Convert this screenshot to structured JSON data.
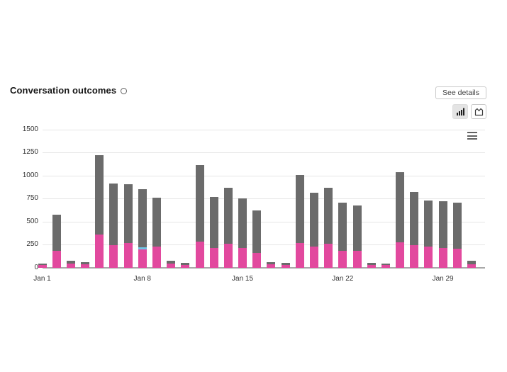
{
  "header": {
    "title": "Conversation outcomes",
    "see_details_label": "See details"
  },
  "toolbar": {
    "icons": [
      "bar-chart-icon",
      "area-chart-icon",
      "hamburger-menu-icon",
      "info-circle-icon"
    ],
    "selected_view": "bar"
  },
  "colors": {
    "pink": "#e2499e",
    "blue": "#6fc5e4",
    "gray": "#6b6b6b",
    "gridline": "#e6e6e6",
    "axis": "#a9a9a9",
    "label": "#333333"
  },
  "chart_data": {
    "type": "bar",
    "stacked": true,
    "title": "Conversation outcomes",
    "xlabel": "",
    "ylabel": "",
    "ylim": [
      0,
      1500
    ],
    "y_ticks": [
      0,
      250,
      500,
      750,
      1000,
      1250,
      1500
    ],
    "x_tick_labels": [
      "Jan 1",
      "Jan 8",
      "Jan 15",
      "Jan 22",
      "Jan 29"
    ],
    "grid": true,
    "legend": "none",
    "categories": [
      "Jan 1",
      "Jan 2",
      "Jan 3",
      "Jan 4",
      "Jan 5",
      "Jan 6",
      "Jan 7",
      "Jan 8",
      "Jan 9",
      "Jan 10",
      "Jan 11",
      "Jan 12",
      "Jan 13",
      "Jan 14",
      "Jan 15",
      "Jan 16",
      "Jan 17",
      "Jan 18",
      "Jan 19",
      "Jan 20",
      "Jan 21",
      "Jan 22",
      "Jan 23",
      "Jan 24",
      "Jan 25",
      "Jan 26",
      "Jan 27",
      "Jan 28",
      "Jan 29",
      "Jan 30",
      "Jan 31"
    ],
    "series": [
      {
        "name": "pink",
        "color": "#e2499e",
        "values": [
          25,
          185,
          45,
          35,
          355,
          240,
          265,
          200,
          230,
          45,
          30,
          285,
          210,
          260,
          210,
          160,
          35,
          30,
          265,
          225,
          260,
          185,
          180,
          30,
          25,
          275,
          240,
          225,
          215,
          205,
          35
        ]
      },
      {
        "name": "blue",
        "color": "#6fc5e4",
        "values": [
          0,
          0,
          0,
          0,
          0,
          0,
          0,
          20,
          0,
          0,
          0,
          0,
          0,
          0,
          0,
          0,
          0,
          0,
          0,
          0,
          0,
          0,
          0,
          0,
          0,
          0,
          0,
          0,
          0,
          0,
          0
        ]
      },
      {
        "name": "gray",
        "color": "#6b6b6b",
        "values": [
          20,
          390,
          30,
          25,
          865,
          675,
          640,
          635,
          530,
          25,
          20,
          830,
          555,
          610,
          545,
          460,
          20,
          18,
          745,
          585,
          610,
          520,
          495,
          20,
          15,
          760,
          580,
          505,
          505,
          500,
          35
        ]
      }
    ]
  }
}
